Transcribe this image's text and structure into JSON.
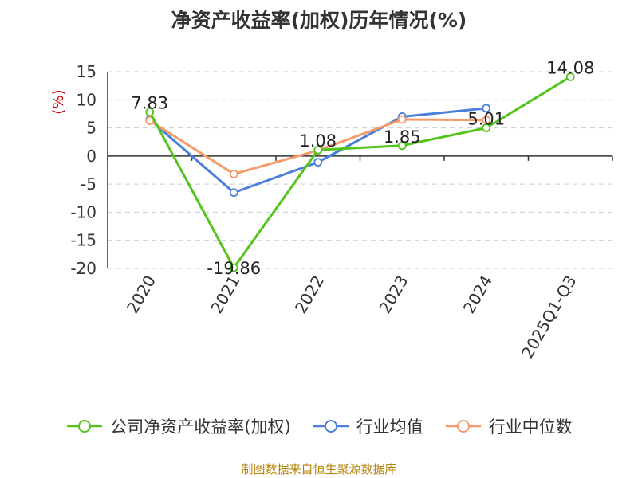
{
  "chart_data": {
    "type": "line",
    "title": "净资产收益率(加权)历年情况(%)",
    "ylabel": "(%)",
    "xlabel": "",
    "ylim": [
      -20,
      15
    ],
    "yticks": [
      15,
      10,
      5,
      0,
      -5,
      -10,
      -15,
      -20
    ],
    "categories": [
      "2020",
      "2021",
      "2022",
      "2023",
      "2024",
      "2025Q1-Q3"
    ],
    "grid": true,
    "legend_position": "bottom",
    "series": [
      {
        "name": "公司净资产收益率(加权)",
        "color": "#52c41a",
        "values": [
          7.83,
          -19.86,
          1.08,
          1.85,
          5.01,
          14.08
        ],
        "labels": [
          "7.83",
          "-19.86",
          "1.08",
          "1.85",
          "5.01",
          "14.08"
        ]
      },
      {
        "name": "行业均值",
        "color": "#4a7fdc",
        "values": [
          6.5,
          -6.5,
          -1.1,
          7.0,
          8.5,
          null
        ]
      },
      {
        "name": "行业中位数",
        "color": "#f79a6a",
        "values": [
          6.3,
          -3.2,
          1.0,
          6.5,
          6.4,
          null
        ]
      }
    ]
  },
  "source": "制图数据来自恒生聚源数据库"
}
